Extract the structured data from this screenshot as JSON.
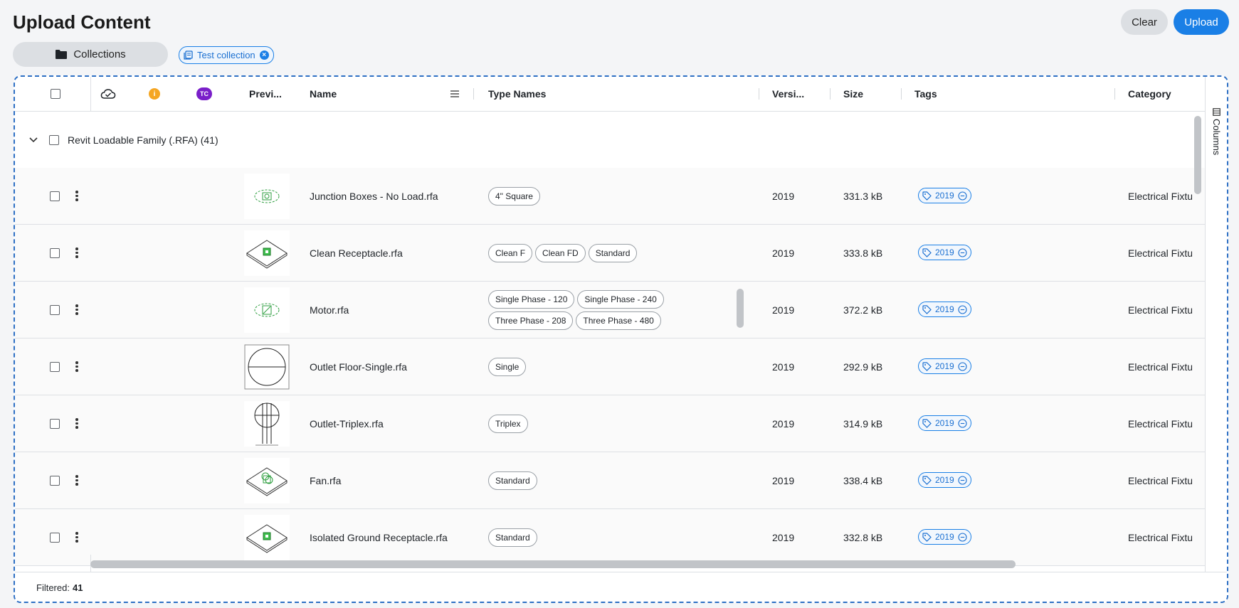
{
  "page": {
    "title": "Upload Content",
    "clear_label": "Clear",
    "upload_label": "Upload",
    "collections_label": "Collections",
    "collection_chip": "Test collection"
  },
  "colors": {
    "accent": "#1a7fe6",
    "info_badge": "#f5a623",
    "tc_badge": "#7a1fc9"
  },
  "header": {
    "info_badge": "i",
    "tc_badge": "TC",
    "preview": "Previ...",
    "name": "Name",
    "type_names": "Type Names",
    "version": "Versi...",
    "size": "Size",
    "tags": "Tags",
    "category": "Category"
  },
  "group": {
    "label": "Revit Loadable Family (.RFA) (41)"
  },
  "rows": [
    {
      "name": "Junction Boxes - No Load.rfa",
      "types": [
        "4\" Square"
      ],
      "version": "2019",
      "size": "331.3 kB",
      "tag": "2019",
      "category": "Electrical Fixtu",
      "preview_icon": "junction-box-preview"
    },
    {
      "name": "Clean Receptacle.rfa",
      "types": [
        "Clean F",
        "Clean FD",
        "Standard"
      ],
      "version": "2019",
      "size": "333.8 kB",
      "tag": "2019",
      "category": "Electrical Fixtu",
      "preview_icon": "receptacle-preview"
    },
    {
      "name": "Motor.rfa",
      "types": [
        "Single Phase - 120",
        "Single Phase - 240",
        "Three Phase - 208",
        "Three Phase - 480"
      ],
      "version": "2019",
      "size": "372.2 kB",
      "tag": "2019",
      "category": "Electrical Fixtu",
      "preview_icon": "motor-preview"
    },
    {
      "name": "Outlet Floor-Single.rfa",
      "types": [
        "Single"
      ],
      "version": "2019",
      "size": "292.9 kB",
      "tag": "2019",
      "category": "Electrical Fixtu",
      "preview_icon": "floor-outlet-preview"
    },
    {
      "name": "Outlet-Triplex.rfa",
      "types": [
        "Triplex"
      ],
      "version": "2019",
      "size": "314.9 kB",
      "tag": "2019",
      "category": "Electrical Fixtu",
      "preview_icon": "triplex-outlet-preview"
    },
    {
      "name": "Fan.rfa",
      "types": [
        "Standard"
      ],
      "version": "2019",
      "size": "338.4 kB",
      "tag": "2019",
      "category": "Electrical Fixtu",
      "preview_icon": "fan-preview"
    },
    {
      "name": "Isolated Ground Receptacle.rfa",
      "types": [
        "Standard"
      ],
      "version": "2019",
      "size": "332.8 kB",
      "tag": "2019",
      "category": "Electrical Fixtu",
      "preview_icon": "receptacle-preview"
    }
  ],
  "side_panel": {
    "columns_label": "Columns"
  },
  "footer": {
    "filtered_label": "Filtered:",
    "filtered_count": "41"
  }
}
